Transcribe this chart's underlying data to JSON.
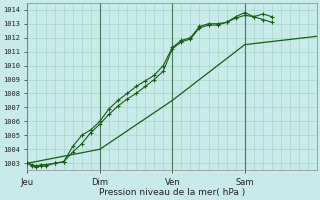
{
  "xlabel": "Pression niveau de la mer( hPa )",
  "bg_color": "#c8eae8",
  "grid_color": "#a8d8c8",
  "line_color": "#1a5c1a",
  "ylim": [
    1002.5,
    1014.5
  ],
  "yticks": [
    1003,
    1004,
    1005,
    1006,
    1007,
    1008,
    1009,
    1010,
    1011,
    1012,
    1013,
    1014
  ],
  "day_labels": [
    "Jeu",
    "Dim",
    "Ven",
    "Sam"
  ],
  "day_positions": [
    0,
    48,
    96,
    144
  ],
  "total_hours": 192,
  "vline_color": "#4a7a5a",
  "line1_x": [
    0,
    3,
    6,
    9,
    12,
    18,
    24,
    30,
    36,
    42,
    48,
    54,
    60,
    66,
    72,
    78,
    84,
    90,
    96,
    102,
    108,
    114,
    120,
    126,
    132,
    138,
    144,
    150,
    156,
    162
  ],
  "line1_y": [
    1003.0,
    1002.8,
    1002.7,
    1002.8,
    1002.8,
    1003.0,
    1003.1,
    1004.2,
    1005.0,
    1005.4,
    1006.0,
    1006.9,
    1007.5,
    1008.0,
    1008.5,
    1008.9,
    1009.3,
    1010.0,
    1011.3,
    1011.8,
    1012.0,
    1012.8,
    1013.0,
    1013.0,
    1013.1,
    1013.4,
    1013.6,
    1013.5,
    1013.3,
    1013.1
  ],
  "line2_x": [
    0,
    3,
    6,
    9,
    12,
    18,
    24,
    30,
    36,
    42,
    48,
    54,
    60,
    66,
    72,
    78,
    84,
    90,
    96,
    102,
    108,
    114,
    120,
    126,
    132,
    138,
    144,
    150,
    156,
    162
  ],
  "line2_y": [
    1003.0,
    1002.9,
    1002.8,
    1002.9,
    1002.9,
    1003.0,
    1003.1,
    1003.8,
    1004.4,
    1005.2,
    1005.8,
    1006.5,
    1007.1,
    1007.6,
    1008.0,
    1008.5,
    1009.0,
    1009.6,
    1011.2,
    1011.7,
    1011.9,
    1012.7,
    1012.9,
    1012.9,
    1013.1,
    1013.5,
    1013.8,
    1013.5,
    1013.7,
    1013.5
  ],
  "line3_x": [
    0,
    48,
    96,
    144,
    192
  ],
  "line3_y": [
    1003.0,
    1004.0,
    1007.5,
    1011.5,
    1012.1
  ]
}
